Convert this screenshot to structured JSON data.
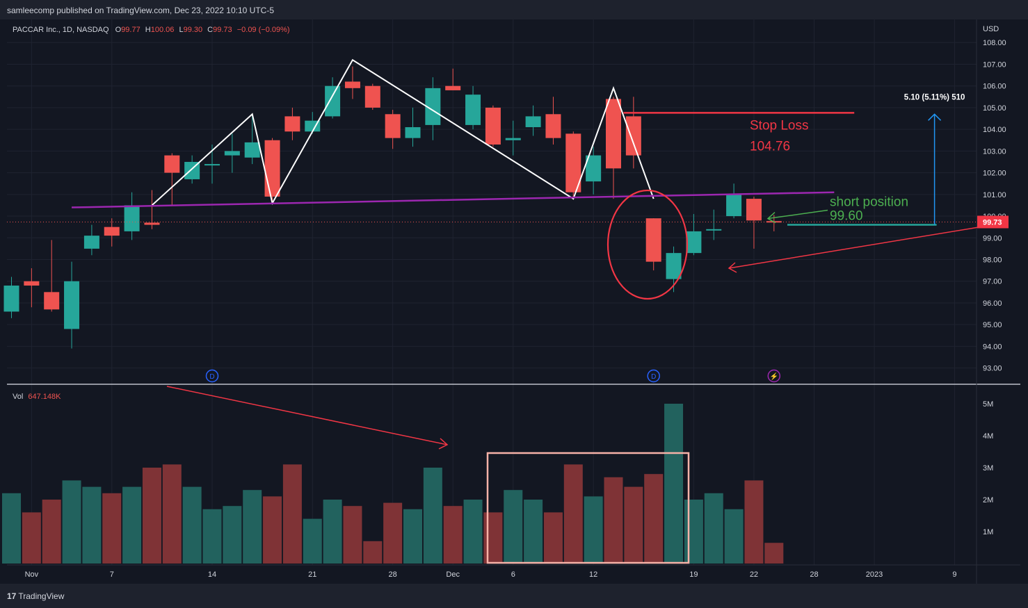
{
  "header": {
    "published_text": "samleecomp published on TradingView.com, Dec 23, 2022 10:10 UTC-5"
  },
  "legend": {
    "symbol": "PACCAR Inc., 1D, NASDAQ",
    "o_label": "O",
    "o_value": "99.77",
    "h_label": "H",
    "h_value": "100.06",
    "l_label": "L",
    "l_value": "99.30",
    "c_label": "C",
    "c_value": "99.73",
    "change": "−0.09 (−0.09%)"
  },
  "volume_legend": {
    "label": "Vol",
    "value": "647.148K"
  },
  "footer": {
    "brand_mark": "17",
    "brand": "TradingView"
  },
  "colors": {
    "up": "#26a69a",
    "down": "#ef5350",
    "background": "#131722",
    "neckline": "#9c27b0",
    "annotation_red": "#f23645",
    "annotation_green": "#4caf50",
    "measure": "#2196f3"
  },
  "chart_data": {
    "type": "candlestick",
    "currency": "USD",
    "price_axis": {
      "range": [
        92.7,
        108.2
      ],
      "ticks": [
        "93.00",
        "94.00",
        "95.00",
        "96.00",
        "97.00",
        "98.00",
        "99.00",
        "100.00",
        "101.00",
        "102.00",
        "103.00",
        "104.00",
        "105.00",
        "106.00",
        "107.00",
        "108.00"
      ]
    },
    "volume_axis": {
      "range": [
        0,
        5000000
      ],
      "ticks": [
        "1M",
        "2M",
        "3M",
        "4M",
        "5M"
      ],
      "tick_values": [
        1000000,
        2000000,
        3000000,
        4000000,
        5000000
      ]
    },
    "time_axis": {
      "ticks": [
        {
          "label": "Nov",
          "slot": 1
        },
        {
          "label": "7",
          "slot": 5
        },
        {
          "label": "14",
          "slot": 10
        },
        {
          "label": "21",
          "slot": 15
        },
        {
          "label": "28",
          "slot": 19
        },
        {
          "label": "Dec",
          "slot": 22
        },
        {
          "label": "6",
          "slot": 25
        },
        {
          "label": "12",
          "slot": 29
        },
        {
          "label": "19",
          "slot": 34
        },
        {
          "label": "22",
          "slot": 37
        },
        {
          "label": "28",
          "slot": 40
        },
        {
          "label": "2023",
          "slot": 43
        },
        {
          "label": "9",
          "slot": 47
        }
      ]
    },
    "candles": [
      {
        "o": 95.6,
        "h": 97.2,
        "l": 95.3,
        "c": 96.8,
        "v": 2200000
      },
      {
        "o": 97.0,
        "h": 97.6,
        "l": 95.8,
        "c": 96.8,
        "v": 1600000
      },
      {
        "o": 96.5,
        "h": 98.9,
        "l": 95.6,
        "c": 95.7,
        "v": 2000000
      },
      {
        "o": 94.8,
        "h": 97.9,
        "l": 93.9,
        "c": 97.0,
        "v": 2600000
      },
      {
        "o": 98.5,
        "h": 99.6,
        "l": 98.2,
        "c": 99.1,
        "v": 2400000
      },
      {
        "o": 99.5,
        "h": 99.9,
        "l": 98.6,
        "c": 99.1,
        "v": 2200000
      },
      {
        "o": 99.3,
        "h": 101.1,
        "l": 98.9,
        "c": 100.5,
        "v": 2400000
      },
      {
        "o": 99.7,
        "h": 101.2,
        "l": 99.4,
        "c": 99.6,
        "v": 3000000
      },
      {
        "o": 102.8,
        "h": 102.9,
        "l": 100.5,
        "c": 102.0,
        "v": 3100000
      },
      {
        "o": 101.7,
        "h": 102.8,
        "l": 101.5,
        "c": 102.5,
        "v": 2400000
      },
      {
        "o": 102.4,
        "h": 103.3,
        "l": 101.5,
        "c": 102.4,
        "v": 1700000
      },
      {
        "o": 102.8,
        "h": 103.8,
        "l": 102.0,
        "c": 103.0,
        "v": 1800000
      },
      {
        "o": 102.7,
        "h": 104.7,
        "l": 102.4,
        "c": 103.4,
        "v": 2300000
      },
      {
        "o": 103.5,
        "h": 103.6,
        "l": 100.7,
        "c": 100.9,
        "v": 2100000
      },
      {
        "o": 104.6,
        "h": 105.0,
        "l": 103.5,
        "c": 103.9,
        "v": 3100000
      },
      {
        "o": 103.9,
        "h": 104.8,
        "l": 103.8,
        "c": 104.4,
        "v": 1400000
      },
      {
        "o": 104.6,
        "h": 106.4,
        "l": 104.5,
        "c": 106.0,
        "v": 2000000
      },
      {
        "o": 106.2,
        "h": 106.9,
        "l": 105.4,
        "c": 105.9,
        "v": 1800000
      },
      {
        "o": 106.0,
        "h": 106.1,
        "l": 104.9,
        "c": 105.0,
        "v": 700000
      },
      {
        "o": 104.7,
        "h": 104.9,
        "l": 103.1,
        "c": 103.6,
        "v": 1900000
      },
      {
        "o": 103.6,
        "h": 105.0,
        "l": 103.2,
        "c": 104.1,
        "v": 1700000
      },
      {
        "o": 104.2,
        "h": 106.4,
        "l": 103.5,
        "c": 105.9,
        "v": 3000000
      },
      {
        "o": 106.0,
        "h": 106.8,
        "l": 105.8,
        "c": 105.8,
        "v": 1800000
      },
      {
        "o": 104.2,
        "h": 106.0,
        "l": 104.0,
        "c": 105.6,
        "v": 2000000
      },
      {
        "o": 105.0,
        "h": 105.1,
        "l": 103.2,
        "c": 103.3,
        "v": 1600000
      },
      {
        "o": 103.5,
        "h": 104.4,
        "l": 102.8,
        "c": 103.6,
        "v": 2300000
      },
      {
        "o": 104.1,
        "h": 105.1,
        "l": 103.7,
        "c": 104.6,
        "v": 2000000
      },
      {
        "o": 104.7,
        "h": 105.5,
        "l": 103.3,
        "c": 103.6,
        "v": 1600000
      },
      {
        "o": 103.8,
        "h": 103.9,
        "l": 100.8,
        "c": 101.1,
        "v": 3100000
      },
      {
        "o": 101.6,
        "h": 103.2,
        "l": 101.0,
        "c": 102.8,
        "v": 2100000
      },
      {
        "o": 105.4,
        "h": 105.5,
        "l": 100.8,
        "c": 102.2,
        "v": 2700000
      },
      {
        "o": 104.6,
        "h": 105.5,
        "l": 102.2,
        "c": 102.8,
        "v": 2400000
      },
      {
        "o": 99.9,
        "h": 99.9,
        "l": 97.5,
        "c": 97.9,
        "v": 2800000
      },
      {
        "o": 97.1,
        "h": 98.6,
        "l": 96.5,
        "c": 98.3,
        "v": 5000000
      },
      {
        "o": 98.3,
        "h": 100.1,
        "l": 98.2,
        "c": 99.3,
        "v": 2000000
      },
      {
        "o": 99.4,
        "h": 100.3,
        "l": 98.9,
        "c": 99.4,
        "v": 2200000
      },
      {
        "o": 100.0,
        "h": 101.5,
        "l": 99.9,
        "c": 101.0,
        "v": 1700000
      },
      {
        "o": 100.8,
        "h": 100.9,
        "l": 98.5,
        "c": 99.8,
        "v": 2600000
      },
      {
        "o": 99.77,
        "h": 100.06,
        "l": 99.3,
        "c": 99.73,
        "v": 647148
      }
    ],
    "last_price_label": "99.73",
    "neckline": {
      "from": {
        "slot": 3,
        "price": 100.4
      },
      "to": {
        "slot": 41,
        "price": 101.1
      }
    },
    "pattern_path": [
      {
        "slot": 7,
        "price": 100.5
      },
      {
        "slot": 12,
        "price": 104.7
      },
      {
        "slot": 13,
        "price": 100.6
      },
      {
        "slot": 17,
        "price": 107.2
      },
      {
        "slot": 28,
        "price": 100.8
      },
      {
        "slot": 30,
        "price": 105.9
      },
      {
        "slot": 32,
        "price": 100.8
      }
    ],
    "stop_loss": {
      "label": "Stop Loss",
      "value": "104.76",
      "price": 104.76,
      "from_slot": 30.5,
      "to_slot": 42
    },
    "short_position": {
      "label": "short position",
      "value": "99.60",
      "price": 99.6
    },
    "measure": {
      "label": "5.10 (5.11%) 510",
      "from_price": 99.6,
      "to_price": 104.7,
      "slot": 46
    },
    "events": [
      {
        "slot": 10,
        "label": "D",
        "kind": "dividend"
      },
      {
        "slot": 32,
        "label": "D",
        "kind": "dividend"
      },
      {
        "slot": 38,
        "label": "⚡",
        "kind": "split"
      }
    ]
  }
}
